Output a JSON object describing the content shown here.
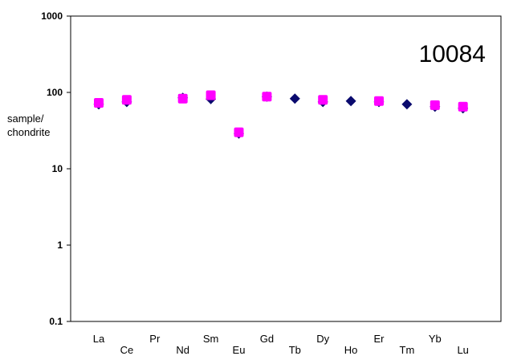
{
  "chart_data": {
    "type": "scatter",
    "title": "",
    "annotation": "10084",
    "ylabel_lines": [
      "sample/",
      "chondrite"
    ],
    "yscale": "log",
    "ylim": [
      0.1,
      1000
    ],
    "yticks": [
      "0.1",
      "1",
      "10",
      "100",
      "1000"
    ],
    "categories": [
      "La",
      "Ce",
      "Pr",
      "Nd",
      "Sm",
      "Eu",
      "Gd",
      "Tb",
      "Dy",
      "Ho",
      "Er",
      "Tm",
      "Yb",
      "Lu"
    ],
    "grid": false,
    "legend": "none",
    "series": [
      {
        "color": "#0a0a6e",
        "marker": "diamond",
        "values": [
          70,
          75,
          null,
          85,
          82,
          29,
          88,
          83,
          75,
          77,
          75,
          70,
          65,
          62
        ]
      },
      {
        "color": "#ff00ff",
        "marker": "square",
        "values": [
          73,
          80,
          null,
          83,
          92,
          30,
          88,
          null,
          80,
          null,
          77,
          null,
          68,
          65
        ]
      }
    ]
  }
}
